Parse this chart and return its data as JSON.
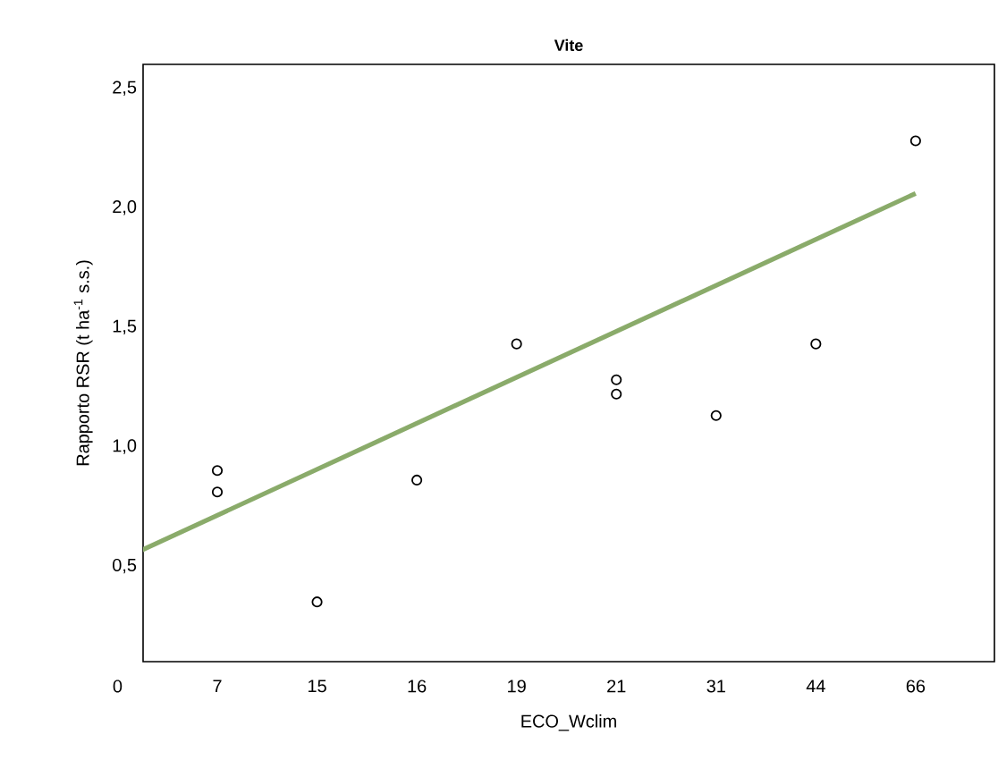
{
  "chart_data": {
    "type": "scatter",
    "title": "Vite",
    "xlabel": "ECO_Wclim",
    "ylabel": "Rapporto RSR (t ha$^{-1}$ s.s.)",
    "categories": [
      "0",
      "7",
      "15",
      "16",
      "19",
      "21",
      "31",
      "44",
      "66"
    ],
    "ylim": [
      0.1,
      2.6
    ],
    "yticks": [
      {
        "value": 0.5,
        "label": "0,5"
      },
      {
        "value": 1.0,
        "label": "1,0"
      },
      {
        "value": 1.5,
        "label": "1,5"
      },
      {
        "value": 2.0,
        "label": "2,0"
      },
      {
        "value": 2.5,
        "label": "2,5"
      }
    ],
    "grid": false,
    "series": [
      {
        "color": "#000000",
        "marker": "circle",
        "x": [
          "7",
          "7",
          "15",
          "16",
          "19",
          "21",
          "21",
          "31",
          "44",
          "66"
        ],
        "values": [
          0.9,
          0.81,
          0.35,
          0.86,
          1.43,
          1.28,
          1.22,
          1.13,
          1.43,
          2.28
        ]
      },
      {
        "type": "line",
        "marker": "none",
        "color": "#8aab6a",
        "x": [
          "0",
          "66"
        ],
        "values": [
          0.52,
          2.06
        ]
      }
    ]
  }
}
